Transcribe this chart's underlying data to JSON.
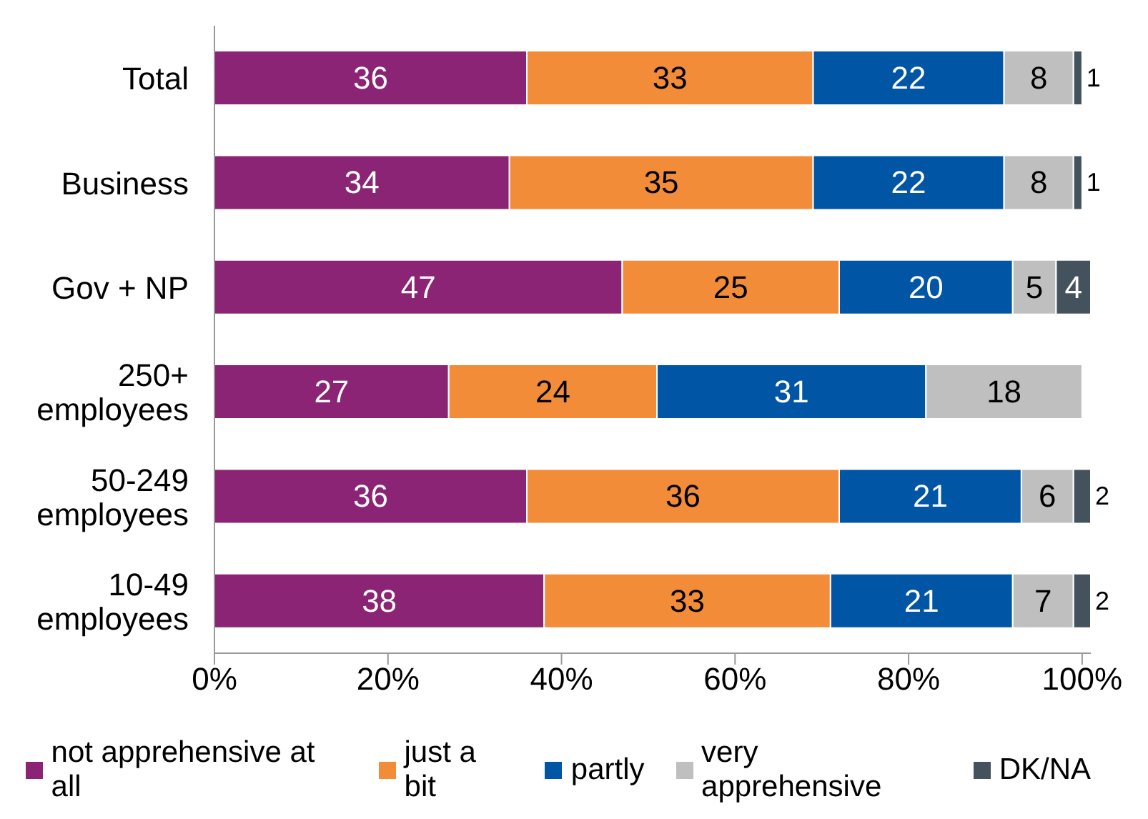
{
  "chart_data": {
    "type": "bar",
    "orientation": "horizontal",
    "stacked": true,
    "data_labels": true,
    "legend": "bottom",
    "categories": [
      "Total",
      "Business",
      "Gov + NP",
      "250+\nemployees",
      "50-249\nemployees",
      "10-49\nemployees"
    ],
    "xlim": [
      0,
      101
    ],
    "xticks": [
      {
        "value": 0,
        "label": "0%"
      },
      {
        "value": 20,
        "label": "20%"
      },
      {
        "value": 40,
        "label": "40%"
      },
      {
        "value": 60,
        "label": "60%"
      },
      {
        "value": 80,
        "label": "80%"
      },
      {
        "value": 100,
        "label": "100%"
      }
    ],
    "series": [
      {
        "name": "not apprehensive at all",
        "color": "#8b2474",
        "values": [
          36,
          34,
          47,
          27,
          36,
          38
        ]
      },
      {
        "name": "just a bit",
        "color": "#f28c38",
        "values": [
          33,
          35,
          25,
          24,
          36,
          33
        ]
      },
      {
        "name": "partly",
        "color": "#0055a4",
        "values": [
          22,
          22,
          20,
          31,
          21,
          21
        ]
      },
      {
        "name": "very apprehensive",
        "color": "#bfbfbf",
        "values": [
          8,
          8,
          5,
          18,
          6,
          7
        ]
      },
      {
        "name": "DK/NA",
        "color": "#44525e",
        "values": [
          1,
          1,
          4,
          null,
          2,
          2
        ]
      }
    ]
  }
}
